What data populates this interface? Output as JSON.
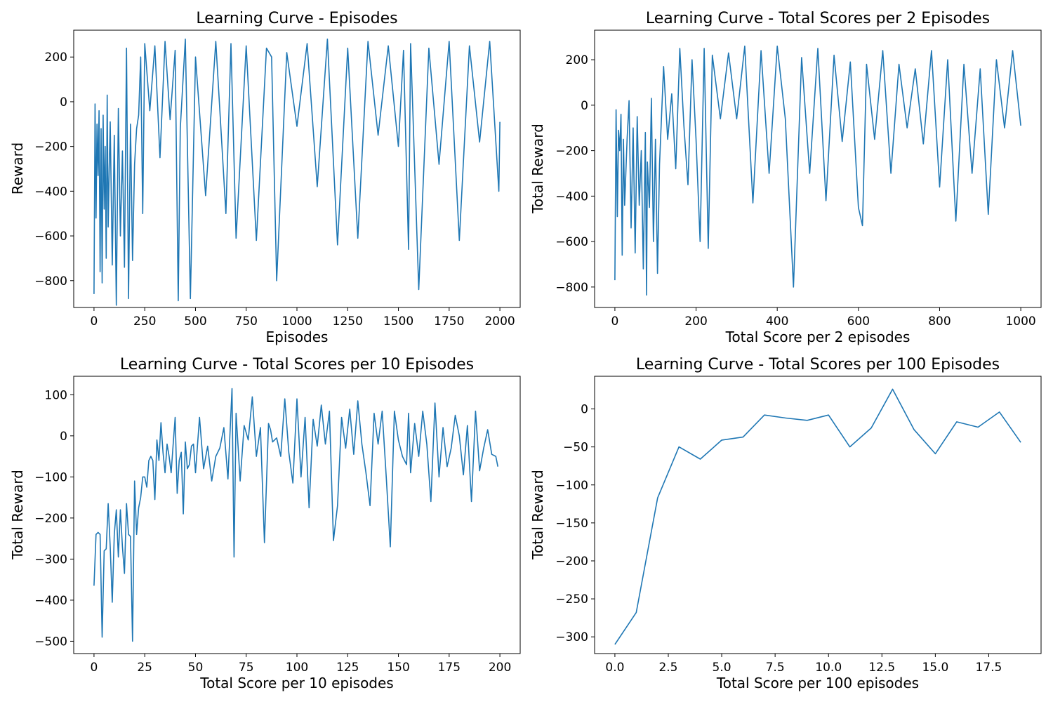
{
  "chart_data": [
    {
      "type": "line",
      "title": "Learning Curve - Episodes",
      "xlabel": "Episodes",
      "ylabel": "Reward",
      "xlim": [
        -100,
        2100
      ],
      "ylim": [
        -920,
        320
      ],
      "xticks": [
        0,
        250,
        500,
        750,
        1000,
        1250,
        1500,
        1750,
        2000
      ],
      "yticks": [
        -800,
        -600,
        -400,
        -200,
        0,
        200
      ],
      "grid": false,
      "color": "#1f77b4",
      "series": [
        {
          "x": [
            0,
            5,
            10,
            15,
            20,
            25,
            30,
            35,
            40,
            45,
            50,
            55,
            60,
            65,
            70,
            75,
            80,
            90,
            100,
            110,
            120,
            130,
            140,
            150,
            160,
            170,
            180,
            190,
            200,
            210,
            220,
            230,
            240,
            250,
            275,
            300,
            325,
            350,
            375,
            400,
            415,
            425,
            450,
            475,
            500,
            550,
            600,
            650,
            675,
            700,
            750,
            800,
            850,
            875,
            900,
            950,
            1000,
            1050,
            1100,
            1150,
            1200,
            1250,
            1300,
            1350,
            1400,
            1450,
            1500,
            1525,
            1550,
            1560,
            1600,
            1650,
            1700,
            1750,
            1800,
            1850,
            1900,
            1950,
            1995,
            2000
          ],
          "y": [
            -860,
            -10,
            -520,
            -100,
            -330,
            -40,
            -760,
            -120,
            -810,
            -60,
            -480,
            -200,
            -700,
            30,
            -560,
            -300,
            -90,
            -730,
            -150,
            -910,
            -30,
            -600,
            -220,
            -740,
            240,
            -880,
            -100,
            -710,
            -280,
            -120,
            -60,
            200,
            -500,
            260,
            -40,
            250,
            -250,
            270,
            -80,
            230,
            -890,
            -120,
            280,
            -880,
            200,
            -420,
            270,
            -500,
            260,
            -610,
            250,
            -620,
            240,
            200,
            -800,
            220,
            -110,
            260,
            -380,
            280,
            -640,
            240,
            -610,
            270,
            -150,
            250,
            -200,
            230,
            -660,
            260,
            -840,
            240,
            -280,
            270,
            -620,
            250,
            -180,
            270,
            -400,
            -90
          ]
        }
      ]
    },
    {
      "type": "line",
      "title": "Learning Curve - Total Scores per 2 Episodes",
      "xlabel": "Total Score per 2 episodes",
      "ylabel": "Total Reward",
      "xlim": [
        -50,
        1050
      ],
      "ylim": [
        -890,
        330
      ],
      "xticks": [
        0,
        200,
        400,
        600,
        800,
        1000
      ],
      "yticks": [
        -800,
        -600,
        -400,
        -200,
        0,
        200
      ],
      "grid": false,
      "color": "#1f77b4",
      "series": [
        {
          "x": [
            0,
            3,
            6,
            9,
            12,
            15,
            18,
            21,
            24,
            27,
            30,
            35,
            40,
            45,
            50,
            55,
            60,
            65,
            70,
            75,
            78,
            80,
            85,
            90,
            95,
            100,
            105,
            110,
            120,
            130,
            140,
            150,
            160,
            170,
            180,
            190,
            200,
            210,
            220,
            230,
            240,
            260,
            280,
            300,
            320,
            340,
            360,
            380,
            400,
            420,
            440,
            460,
            480,
            500,
            520,
            540,
            560,
            580,
            600,
            610,
            620,
            640,
            660,
            680,
            700,
            720,
            740,
            760,
            780,
            800,
            820,
            840,
            860,
            880,
            900,
            920,
            940,
            960,
            980,
            1000
          ],
          "y": [
            -770,
            -20,
            -490,
            -110,
            -200,
            -40,
            -660,
            -150,
            -440,
            -300,
            -150,
            20,
            -540,
            -100,
            -650,
            -50,
            -440,
            -200,
            -720,
            -120,
            -835,
            -250,
            -450,
            30,
            -600,
            -150,
            -740,
            -260,
            170,
            -150,
            50,
            -280,
            250,
            -90,
            -350,
            200,
            -150,
            -600,
            250,
            -630,
            220,
            -60,
            230,
            -60,
            260,
            -430,
            240,
            -300,
            260,
            -60,
            -800,
            210,
            -300,
            250,
            -420,
            220,
            -160,
            190,
            -450,
            -530,
            180,
            -150,
            240,
            -300,
            180,
            -100,
            160,
            -170,
            240,
            -360,
            200,
            -510,
            180,
            -300,
            160,
            -480,
            200,
            -100,
            240,
            -90
          ]
        }
      ]
    },
    {
      "type": "line",
      "title": "Learning Curve - Total Scores per 10 Episodes",
      "xlabel": "Total Score per 10 episodes",
      "ylabel": "Total Reward",
      "xlim": [
        -10,
        210
      ],
      "ylim": [
        -530,
        145
      ],
      "xticks": [
        0,
        25,
        50,
        75,
        100,
        125,
        150,
        175,
        200
      ],
      "yticks": [
        -500,
        -400,
        -300,
        -200,
        -100,
        0,
        100
      ],
      "grid": false,
      "color": "#1f77b4",
      "series": [
        {
          "x": [
            0,
            1,
            2,
            3,
            4,
            5,
            6,
            7,
            8,
            9,
            10,
            11,
            12,
            13,
            14,
            15,
            16,
            17,
            18,
            19,
            20,
            21,
            22,
            23,
            24,
            25,
            26,
            27,
            28,
            29,
            30,
            31,
            32,
            33,
            34,
            35,
            36,
            37,
            38,
            39,
            40,
            41,
            42,
            43,
            44,
            45,
            46,
            47,
            48,
            49,
            50,
            52,
            54,
            56,
            58,
            60,
            62,
            64,
            66,
            68,
            69,
            70,
            72,
            74,
            76,
            78,
            80,
            82,
            84,
            86,
            87,
            88,
            90,
            92,
            94,
            96,
            98,
            100,
            102,
            104,
            106,
            108,
            110,
            112,
            114,
            116,
            118,
            120,
            122,
            124,
            126,
            128,
            130,
            132,
            134,
            136,
            138,
            140,
            142,
            144,
            146,
            148,
            150,
            152,
            154,
            155,
            156,
            158,
            160,
            162,
            164,
            166,
            168,
            170,
            172,
            174,
            176,
            178,
            180,
            182,
            184,
            186,
            188,
            190,
            192,
            194,
            196,
            198,
            199
          ],
          "y": [
            -365,
            -240,
            -235,
            -240,
            -490,
            -280,
            -275,
            -165,
            -270,
            -405,
            -240,
            -180,
            -295,
            -180,
            -270,
            -335,
            -165,
            -240,
            -245,
            -500,
            -110,
            -240,
            -175,
            -150,
            -100,
            -100,
            -125,
            -60,
            -50,
            -60,
            -155,
            -10,
            -60,
            32,
            -40,
            -90,
            -20,
            -50,
            -90,
            -20,
            45,
            -140,
            -60,
            -40,
            -190,
            -15,
            -80,
            -70,
            -25,
            -20,
            -90,
            45,
            -80,
            -25,
            -110,
            -50,
            -30,
            20,
            -105,
            115,
            -295,
            55,
            -110,
            25,
            -10,
            95,
            -50,
            20,
            -260,
            30,
            15,
            -15,
            -5,
            -50,
            90,
            -40,
            -115,
            90,
            -100,
            45,
            -175,
            40,
            -25,
            75,
            -20,
            60,
            -255,
            -170,
            45,
            -30,
            65,
            -45,
            85,
            -20,
            -90,
            -170,
            55,
            -20,
            60,
            -100,
            -270,
            60,
            -10,
            -50,
            -70,
            55,
            -90,
            30,
            -50,
            60,
            -20,
            -160,
            80,
            -100,
            20,
            -75,
            -30,
            50,
            0,
            -95,
            25,
            -160,
            60,
            -85,
            -30,
            15,
            -45,
            -50,
            -75
          ]
        }
      ]
    },
    {
      "type": "line",
      "title": "Learning Curve - Total Scores per 100 Episodes",
      "xlabel": "Total Score per 100 episodes",
      "ylabel": "Total Reward",
      "xlim": [
        -0.95,
        19.95
      ],
      "ylim": [
        -322,
        43
      ],
      "xticks": [
        0.0,
        2.5,
        5.0,
        7.5,
        10.0,
        12.5,
        15.0,
        17.5
      ],
      "xtick_labels": [
        "0.0",
        "2.5",
        "5.0",
        "7.5",
        "10.0",
        "12.5",
        "15.0",
        "17.5"
      ],
      "yticks": [
        -300,
        -250,
        -200,
        -150,
        -100,
        -50,
        0
      ],
      "grid": false,
      "color": "#1f77b4",
      "series": [
        {
          "x": [
            0,
            1,
            2,
            3,
            4,
            5,
            6,
            7,
            8,
            9,
            10,
            11,
            12,
            13,
            14,
            15,
            16,
            17,
            18,
            19
          ],
          "y": [
            -310,
            -268,
            -117,
            -50,
            -66,
            -41,
            -37,
            -8,
            -12,
            -15,
            -8,
            -50,
            -25,
            26,
            -27,
            -59,
            -17,
            -24,
            -4,
            -44
          ]
        }
      ]
    }
  ]
}
